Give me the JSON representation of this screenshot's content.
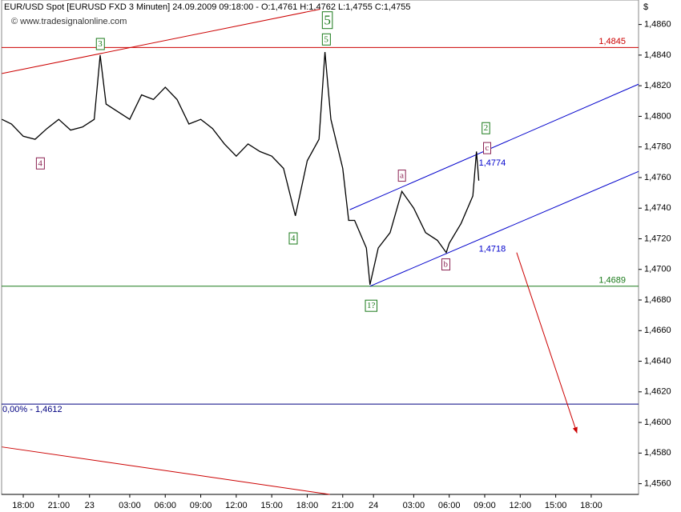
{
  "chart_data": {
    "type": "line",
    "title": "EUR/USD Spot [EURUSD FXD  3 Minuten] 24.09.2009 09:18:00 - O:1,4761 H:1,4762 L:1,4755 C:1,4755",
    "source": "© www.tradesignalonline.com",
    "axis_unit": "$",
    "xlim": [
      -1.83,
      52.0
    ],
    "ylim": [
      1.4553,
      1.4876
    ],
    "xticks": [
      {
        "value": 0,
        "label": "18:00"
      },
      {
        "value": 3,
        "label": "21:00"
      },
      {
        "value": 5.6,
        "label": "23"
      },
      {
        "value": 9,
        "label": "03:00"
      },
      {
        "value": 12,
        "label": "06:00"
      },
      {
        "value": 15,
        "label": "09:00"
      },
      {
        "value": 18,
        "label": "12:00"
      },
      {
        "value": 21,
        "label": "15:00"
      },
      {
        "value": 24,
        "label": "18:00"
      },
      {
        "value": 27,
        "label": "21:00"
      },
      {
        "value": 29.6,
        "label": "24"
      },
      {
        "value": 33,
        "label": "03:00"
      },
      {
        "value": 36,
        "label": "06:00"
      },
      {
        "value": 39,
        "label": "09:00"
      },
      {
        "value": 42,
        "label": "12:00"
      },
      {
        "value": 45,
        "label": "15:00"
      },
      {
        "value": 48,
        "label": "18:00"
      }
    ],
    "yticks": [
      {
        "value": 1.486,
        "label": "1,4860"
      },
      {
        "value": 1.484,
        "label": "1,4840"
      },
      {
        "value": 1.482,
        "label": "1,4820"
      },
      {
        "value": 1.48,
        "label": "1,4800"
      },
      {
        "value": 1.478,
        "label": "1,4780"
      },
      {
        "value": 1.476,
        "label": "1,4760"
      },
      {
        "value": 1.474,
        "label": "1,4740"
      },
      {
        "value": 1.472,
        "label": "1,4720"
      },
      {
        "value": 1.47,
        "label": "1,4700"
      },
      {
        "value": 1.468,
        "label": "1,4680"
      },
      {
        "value": 1.466,
        "label": "1,4660"
      },
      {
        "value": 1.464,
        "label": "1,4640"
      },
      {
        "value": 1.462,
        "label": "1,4620"
      },
      {
        "value": 1.46,
        "label": "1,4600"
      },
      {
        "value": 1.458,
        "label": "1,4580"
      },
      {
        "value": 1.456,
        "label": "1,4560"
      }
    ],
    "series": [
      {
        "name": "EUR/USD",
        "color": "#000000",
        "x": [
          -1.8,
          -1,
          0,
          1,
          2,
          3,
          4,
          5,
          6,
          6.5,
          7,
          8,
          9,
          10,
          11,
          12,
          13,
          14,
          15,
          16,
          17,
          18,
          19,
          20,
          21,
          22,
          23,
          24,
          25,
          25.5,
          26,
          27,
          27.5,
          28,
          29,
          29.3,
          30,
          31,
          32,
          33,
          34,
          35,
          35.75,
          36,
          37,
          38,
          38.3,
          38.5
        ],
        "values": [
          1.4798,
          1.4795,
          1.4787,
          1.4785,
          1.4792,
          1.4798,
          1.4791,
          1.4793,
          1.4798,
          1.484,
          1.4808,
          1.4803,
          1.4798,
          1.4814,
          1.4811,
          1.4819,
          1.4811,
          1.4795,
          1.4798,
          1.4792,
          1.4782,
          1.4774,
          1.4782,
          1.4777,
          1.4774,
          1.4766,
          1.4735,
          1.4771,
          1.4785,
          1.4842,
          1.4798,
          1.4766,
          1.4732,
          1.4732,
          1.4714,
          1.469,
          1.4714,
          1.4724,
          1.4751,
          1.474,
          1.4724,
          1.4719,
          1.4711,
          1.4717,
          1.473,
          1.4748,
          1.4777,
          1.4758
        ]
      }
    ],
    "hlines": [
      {
        "value": 1.4845,
        "label": "1,4845",
        "color": "#cc0000"
      },
      {
        "value": 1.4689,
        "label": "1,4689",
        "color": "#1a7a1a"
      }
    ],
    "trendlines": [
      {
        "x": [
          27.6,
          52.0
        ],
        "y": [
          1.4739,
          1.4821
        ],
        "color": "#0000cc",
        "label": "1,4774"
      },
      {
        "x": [
          29.3,
          52.0
        ],
        "y": [
          1.4689,
          1.4764
        ],
        "color": "#0000cc",
        "label": "1,4718"
      },
      {
        "x": [
          -1.8,
          25.1
        ],
        "y": [
          1.4828,
          1.487
        ],
        "color": "#cc0000"
      },
      {
        "x": [
          -1.8,
          25.9
        ],
        "y": [
          1.4584,
          1.4553
        ],
        "color": "#cc0000"
      }
    ],
    "arrow": {
      "x": [
        41.7,
        46.8
      ],
      "y": [
        1.4711,
        1.4593
      ],
      "color": "#cc0000"
    },
    "panel": {
      "value": 1.4612,
      "label": "0,00% - 1,4612"
    },
    "wave_labels": [
      {
        "text": "3",
        "x": 6.5,
        "y": 1.4847,
        "color": "#1a7a1a"
      },
      {
        "text": "5",
        "x": 25.7,
        "y": 1.4862,
        "color": "#1a7a1a",
        "big": true
      },
      {
        "text": "5",
        "x": 25.6,
        "y": 1.485,
        "color": "#1a7a1a"
      },
      {
        "text": "4",
        "x": 1.43,
        "y": 1.4769,
        "color": "#8b2252"
      },
      {
        "text": "4",
        "x": 22.8,
        "y": 1.472,
        "color": "#1a7a1a"
      },
      {
        "text": "1?",
        "x": 29.4,
        "y": 1.4676,
        "color": "#1a7a1a"
      },
      {
        "text": "a",
        "x": 32.0,
        "y": 1.4761,
        "color": "#8b2252"
      },
      {
        "text": "b",
        "x": 35.7,
        "y": 1.4703,
        "color": "#8b2252"
      },
      {
        "text": "c",
        "x": 39.2,
        "y": 1.4779,
        "color": "#8b2252"
      },
      {
        "text": "2",
        "x": 39.1,
        "y": 1.4792,
        "color": "#1a7a1a"
      }
    ]
  }
}
